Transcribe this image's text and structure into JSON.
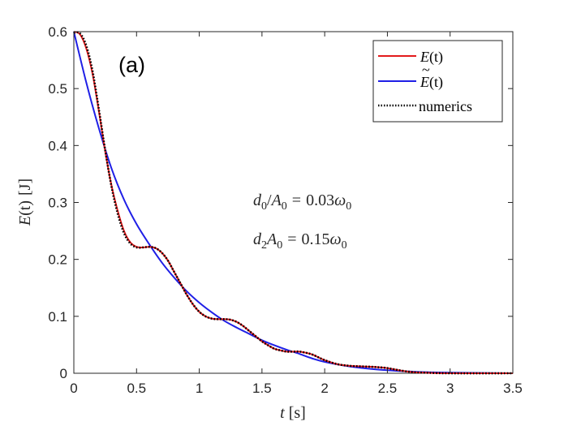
{
  "chart_data": {
    "type": "line",
    "panel_label": "(a)",
    "xlabel": {
      "var": "t",
      "unit": "[s]"
    },
    "ylabel": {
      "func": "E",
      "arg": "(t)",
      "unit": "[J]"
    },
    "xlim": [
      0,
      3.5
    ],
    "ylim": [
      0,
      0.6
    ],
    "xticks": [
      0,
      0.5,
      1,
      1.5,
      2,
      2.5,
      3,
      3.5
    ],
    "xtick_labels": [
      "0",
      "0.5",
      "1",
      "1.5",
      "2",
      "2.5",
      "3",
      "3.5"
    ],
    "yticks": [
      0,
      0.1,
      0.2,
      0.3,
      0.4,
      0.5,
      0.6
    ],
    "ytick_labels": [
      "0",
      "0.1",
      "0.2",
      "0.3",
      "0.4",
      "0.5",
      "0.6"
    ],
    "grid": false,
    "legend_position": "top-right",
    "series": [
      {
        "name": "E(t)",
        "legend_func": "E",
        "legend_arg": "(t)",
        "tilde": false,
        "color": "#e31a1c",
        "style": "solid",
        "points": [
          [
            0,
            0.6
          ],
          [
            0.05,
            0.595
          ],
          [
            0.1,
            0.57
          ],
          [
            0.15,
            0.525
          ],
          [
            0.2,
            0.46
          ],
          [
            0.25,
            0.39
          ],
          [
            0.3,
            0.33
          ],
          [
            0.35,
            0.285
          ],
          [
            0.4,
            0.25
          ],
          [
            0.45,
            0.23
          ],
          [
            0.5,
            0.222
          ],
          [
            0.55,
            0.221
          ],
          [
            0.6,
            0.222
          ],
          [
            0.65,
            0.22
          ],
          [
            0.7,
            0.212
          ],
          [
            0.75,
            0.198
          ],
          [
            0.8,
            0.178
          ],
          [
            0.85,
            0.158
          ],
          [
            0.9,
            0.138
          ],
          [
            0.95,
            0.121
          ],
          [
            1.0,
            0.108
          ],
          [
            1.05,
            0.1
          ],
          [
            1.1,
            0.096
          ],
          [
            1.15,
            0.095
          ],
          [
            1.2,
            0.095
          ],
          [
            1.25,
            0.094
          ],
          [
            1.3,
            0.09
          ],
          [
            1.35,
            0.083
          ],
          [
            1.4,
            0.074
          ],
          [
            1.45,
            0.065
          ],
          [
            1.5,
            0.056
          ],
          [
            1.55,
            0.049
          ],
          [
            1.6,
            0.043
          ],
          [
            1.65,
            0.04
          ],
          [
            1.7,
            0.038
          ],
          [
            1.75,
            0.038
          ],
          [
            1.8,
            0.038
          ],
          [
            1.85,
            0.036
          ],
          [
            1.9,
            0.033
          ],
          [
            1.95,
            0.028
          ],
          [
            2.0,
            0.023
          ],
          [
            2.1,
            0.016
          ],
          [
            2.2,
            0.013
          ],
          [
            2.3,
            0.012
          ],
          [
            2.4,
            0.011
          ],
          [
            2.5,
            0.009
          ],
          [
            2.6,
            0.005
          ],
          [
            2.7,
            0.002
          ],
          [
            2.8,
            0.001
          ],
          [
            3.0,
            0.0
          ],
          [
            3.5,
            0.0
          ]
        ]
      },
      {
        "name": "Ẽ(t)",
        "legend_func": "E",
        "legend_arg": "(t)",
        "tilde": true,
        "color": "#1f1fe6",
        "style": "solid",
        "points": [
          [
            0,
            0.6
          ],
          [
            0.1,
            0.51
          ],
          [
            0.2,
            0.43
          ],
          [
            0.3,
            0.36
          ],
          [
            0.4,
            0.305
          ],
          [
            0.5,
            0.262
          ],
          [
            0.6,
            0.227
          ],
          [
            0.7,
            0.195
          ],
          [
            0.8,
            0.168
          ],
          [
            0.9,
            0.144
          ],
          [
            1.0,
            0.124
          ],
          [
            1.1,
            0.107
          ],
          [
            1.2,
            0.092
          ],
          [
            1.3,
            0.08
          ],
          [
            1.4,
            0.069
          ],
          [
            1.5,
            0.058
          ],
          [
            1.6,
            0.049
          ],
          [
            1.7,
            0.041
          ],
          [
            1.8,
            0.034
          ],
          [
            1.9,
            0.026
          ],
          [
            2.0,
            0.02
          ],
          [
            2.2,
            0.012
          ],
          [
            2.4,
            0.007
          ],
          [
            2.6,
            0.004
          ],
          [
            2.8,
            0.002
          ],
          [
            3.0,
            0.001
          ],
          [
            3.5,
            0.0
          ]
        ]
      },
      {
        "name": "numerics",
        "legend_label": "numerics",
        "color": "#000000",
        "style": "dotted",
        "points": [
          [
            0,
            0.598
          ],
          [
            0.05,
            0.597
          ],
          [
            0.1,
            0.575
          ],
          [
            0.15,
            0.53
          ],
          [
            0.2,
            0.463
          ],
          [
            0.25,
            0.392
          ],
          [
            0.3,
            0.328
          ],
          [
            0.35,
            0.28
          ],
          [
            0.4,
            0.246
          ],
          [
            0.45,
            0.228
          ],
          [
            0.5,
            0.221
          ],
          [
            0.55,
            0.221
          ],
          [
            0.6,
            0.222
          ],
          [
            0.65,
            0.22
          ],
          [
            0.7,
            0.212
          ],
          [
            0.75,
            0.198
          ],
          [
            0.8,
            0.178
          ],
          [
            0.85,
            0.158
          ],
          [
            0.9,
            0.138
          ],
          [
            0.95,
            0.121
          ],
          [
            1.0,
            0.108
          ],
          [
            1.05,
            0.1
          ],
          [
            1.1,
            0.096
          ],
          [
            1.15,
            0.095
          ],
          [
            1.2,
            0.095
          ],
          [
            1.25,
            0.094
          ],
          [
            1.3,
            0.09
          ],
          [
            1.35,
            0.083
          ],
          [
            1.4,
            0.074
          ],
          [
            1.45,
            0.065
          ],
          [
            1.5,
            0.056
          ],
          [
            1.55,
            0.049
          ],
          [
            1.6,
            0.043
          ],
          [
            1.65,
            0.04
          ],
          [
            1.7,
            0.038
          ],
          [
            1.75,
            0.038
          ],
          [
            1.8,
            0.038
          ],
          [
            1.85,
            0.036
          ],
          [
            1.9,
            0.033
          ],
          [
            1.95,
            0.028
          ],
          [
            2.0,
            0.023
          ],
          [
            2.1,
            0.016
          ],
          [
            2.2,
            0.013
          ],
          [
            2.3,
            0.012
          ],
          [
            2.4,
            0.011
          ],
          [
            2.5,
            0.009
          ],
          [
            2.6,
            0.005
          ],
          [
            2.7,
            0.002
          ],
          [
            2.8,
            0.001
          ],
          [
            3.0,
            0.0
          ],
          [
            3.5,
            0.0
          ]
        ]
      }
    ],
    "annotations": [
      {
        "lhs_sym": "d",
        "lhs_sub": "0",
        "op": "/",
        "lhs2_sym": "A",
        "lhs2_sub": "0",
        "rhs_num": "0.03",
        "rhs_sym": "ω",
        "rhs_sub": "0"
      },
      {
        "lhs_sym": "d",
        "lhs_sub": "2",
        "op": "",
        "lhs2_sym": "A",
        "lhs2_sub": "0",
        "rhs_num": "0.15",
        "rhs_sym": "ω",
        "rhs_sub": "0"
      }
    ]
  }
}
